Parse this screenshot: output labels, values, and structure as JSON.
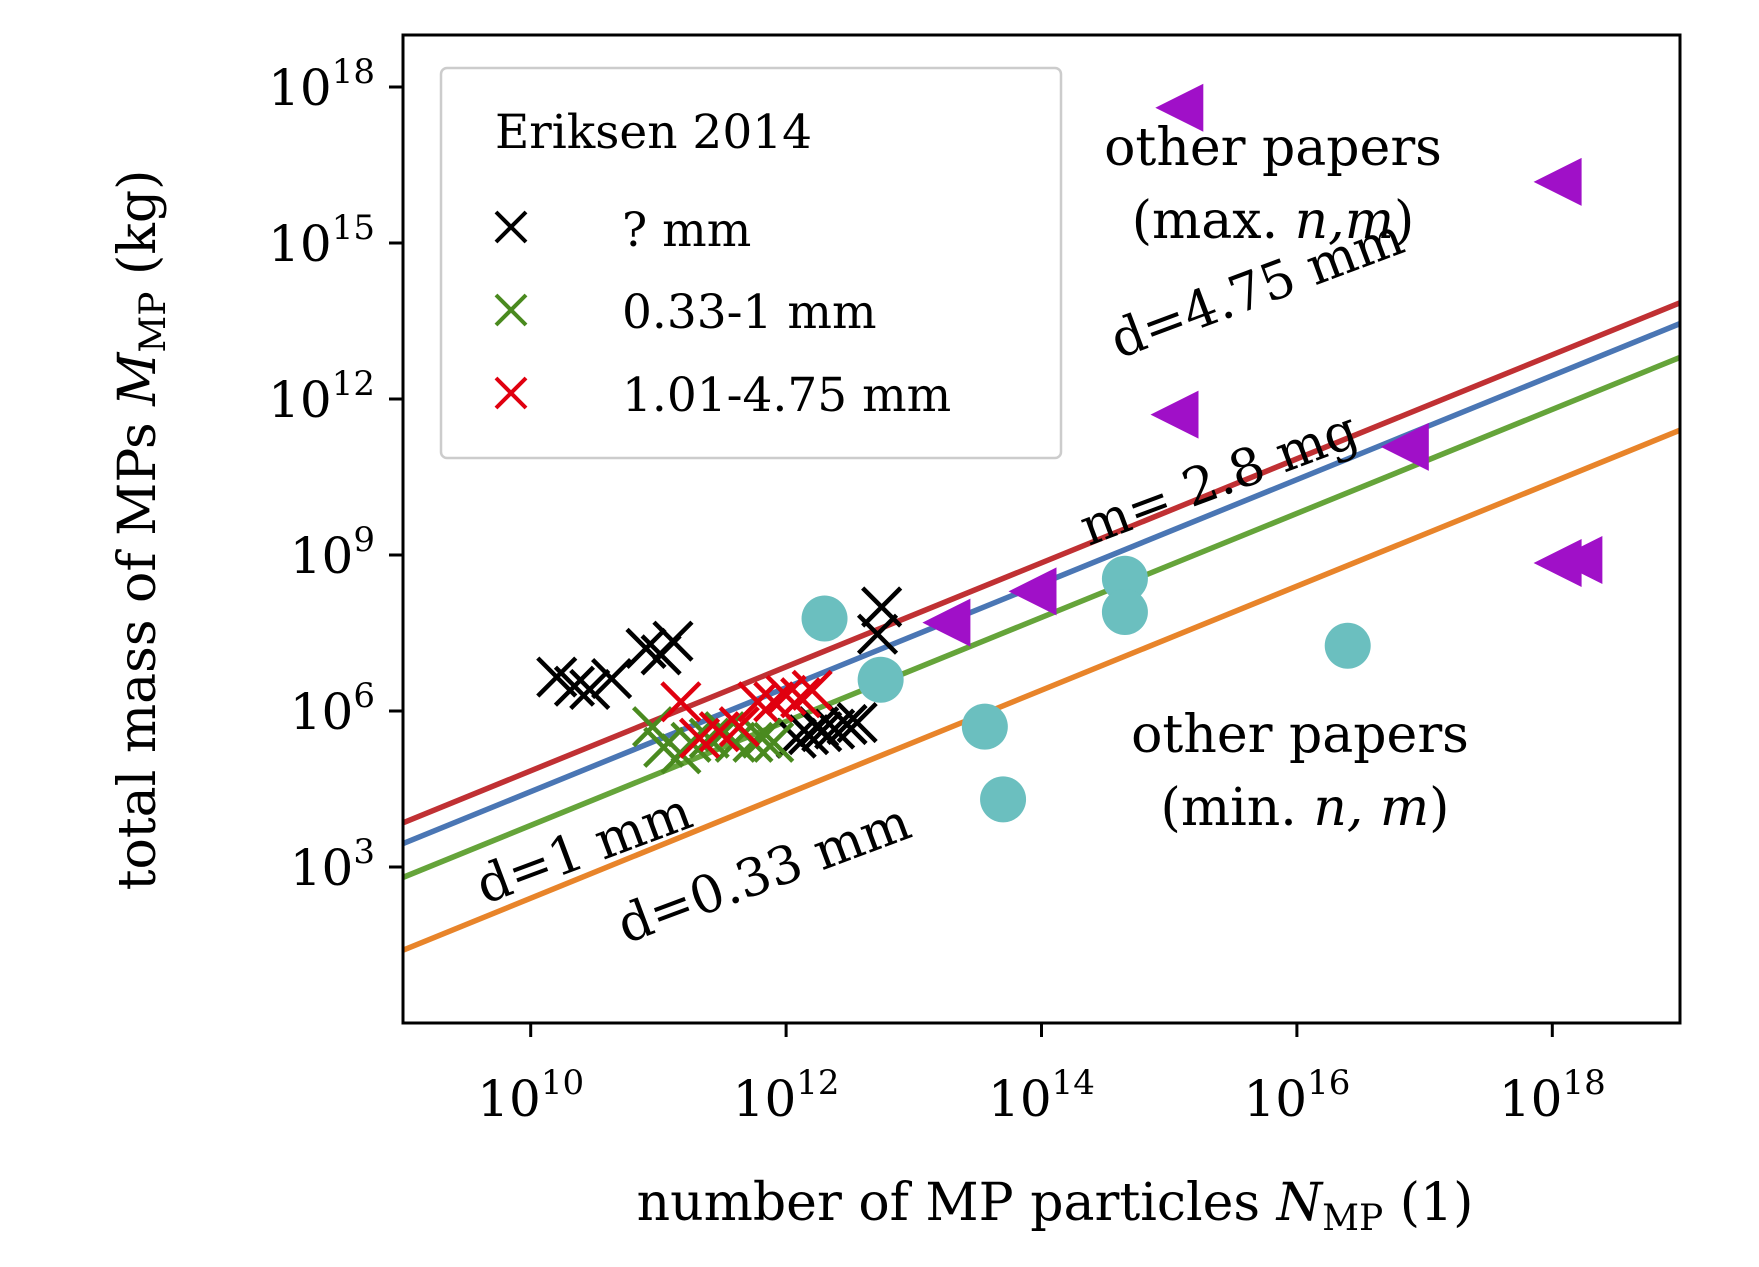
{
  "chart_data": {
    "type": "scatter",
    "xscale": "log",
    "yscale": "log",
    "xlim": [
      1000000000.0,
      1e+19
    ],
    "ylim": [
      1.0,
      1e+19
    ],
    "xticks": [
      10000000000.0,
      1000000000000.0,
      100000000000000.0,
      1e+16,
      1e+18
    ],
    "yticks": [
      1000.0,
      1000000.0,
      1000000000.0,
      1000000000000.0,
      1000000000000000.0,
      1e+18
    ],
    "xtick_labels": [
      {
        "base": "10",
        "exp": "10"
      },
      {
        "base": "10",
        "exp": "12"
      },
      {
        "base": "10",
        "exp": "14"
      },
      {
        "base": "10",
        "exp": "16"
      },
      {
        "base": "10",
        "exp": "18"
      }
    ],
    "ytick_labels": [
      {
        "base": "10",
        "exp": "3"
      },
      {
        "base": "10",
        "exp": "6"
      },
      {
        "base": "10",
        "exp": "9"
      },
      {
        "base": "10",
        "exp": "12"
      },
      {
        "base": "10",
        "exp": "15"
      },
      {
        "base": "10",
        "exp": "18"
      }
    ],
    "xlabel": {
      "pre": "number of MP particles ",
      "sym": "N",
      "sub": "MP",
      "post": " (1)"
    },
    "ylabel": {
      "pre": "total mass of MPs ",
      "sym": "M",
      "sub": "MP",
      "post": " (kg)"
    },
    "grid": false,
    "legend": {
      "position": "top-left",
      "title": "Eriksen 2014",
      "entries": [
        {
          "label": "? mm",
          "color": "#000000",
          "marker": "x"
        },
        {
          "label": "0.33-1 mm",
          "color": "#4a8a1f",
          "marker": "x"
        },
        {
          "label": "1.01-4.75 mm",
          "color": "#e0000f",
          "marker": "x"
        }
      ]
    },
    "lines": [
      {
        "label": "d=4.75 mm",
        "color": "#c03033",
        "slope": 1,
        "intercept_log10": -5.15
      },
      {
        "label": "m= 2.8 mg",
        "color": "#4a76b4",
        "slope": 1,
        "intercept_log10": -5.55
      },
      {
        "label": "d=1 mm",
        "color": "#65a43a",
        "slope": 1,
        "intercept_log10": -6.2
      },
      {
        "label": "d=0.33 mm",
        "color": "#e8842a",
        "slope": 1,
        "intercept_log10": -7.6
      }
    ],
    "series": [
      {
        "name": "? mm",
        "marker": "x",
        "color": "#000000",
        "x": [
          16000000000.0,
          22000000000.0,
          29000000000.0,
          43000000000.0,
          80000000000.0,
          105000000000.0,
          130000000000.0,
          1200000000000.0,
          1500000000000.0,
          1900000000000.0,
          2400000000000.0,
          3000000000000.0,
          3600000000000.0,
          5200000000000.0,
          5600000000000.0,
          1800000000000.0
        ],
        "y": [
          4500000.0,
          3000000.0,
          2600000.0,
          4200000.0,
          16000000.0,
          12000000.0,
          22000000.0,
          300000.0,
          350000.0,
          400000.0,
          450000.0,
          550000.0,
          600000.0,
          30000000.0,
          100000000.0,
          500000.0
        ]
      },
      {
        "name": "0.33-1 mm",
        "marker": "x",
        "color": "#4a8a1f",
        "x": [
          90000000000.0,
          110000000000.0,
          150000000000.0,
          180000000000.0,
          250000000000.0,
          330000000000.0,
          400000000000.0,
          550000000000.0,
          650000000000.0,
          800000000000.0
        ],
        "y": [
          500000.0,
          200000.0,
          150000.0,
          250000.0,
          300000.0,
          400000.0,
          250000.0,
          250000.0,
          300000.0,
          250000.0
        ]
      },
      {
        "name": "1.01-4.75 mm",
        "marker": "x",
        "color": "#e0000f",
        "x": [
          150000000000.0,
          210000000000.0,
          300000000000.0,
          430000000000.0,
          600000000000.0,
          800000000000.0,
          1000000000000.0,
          1300000000000.0,
          1600000000000.0
        ],
        "y": [
          1500000.0,
          300000.0,
          400000.0,
          500000.0,
          1500000.0,
          1500000.0,
          2000000.0,
          1800000.0,
          2500000.0
        ]
      },
      {
        "name": "other papers (min. n, m)",
        "marker": "circle",
        "color": "#6bbfbf",
        "x": [
          2000000000000.0,
          5500000000000.0,
          36000000000000.0,
          50000000000000.0,
          450000000000000.0,
          450000000000000.0,
          2.5e+16
        ],
        "y": [
          60000000.0,
          4000000.0,
          500000.0,
          20000.0,
          350000000.0,
          80000000.0,
          18000000.0
        ]
      },
      {
        "name": "other papers (max. n,m)",
        "marker": "triangle-left",
        "color": "#a010c8",
        "x": [
          18000000000000.0,
          85000000000000.0,
          1100000000000000.0,
          1200000000000000.0,
          7e+16,
          1.1e+18,
          1.1e+18,
          1.6e+18
        ],
        "y": [
          50000000.0,
          200000000.0,
          500000000000.0,
          4e+17,
          120000000000.0,
          1.5e+16,
          700000000.0,
          800000000.0
        ]
      }
    ],
    "annotations": [
      {
        "text": "d=4.75 mm",
        "color": "#c03033"
      },
      {
        "text": "m= 2.8 mg",
        "color": "#4a76b4"
      },
      {
        "text": "d=1 mm",
        "color": "#4a8a1f"
      },
      {
        "text": "d=0.33 mm",
        "color": "#e8842a"
      },
      {
        "line1": "other papers",
        "line2_pre": "(max. ",
        "line2_it": "n,m",
        "line2_post": ")",
        "color": "#a010c8"
      },
      {
        "line1": "other papers",
        "line2_pre": "(min. ",
        "line2_it": "n, m",
        "line2_post": ")",
        "color": "#6bbfbf"
      }
    ]
  }
}
